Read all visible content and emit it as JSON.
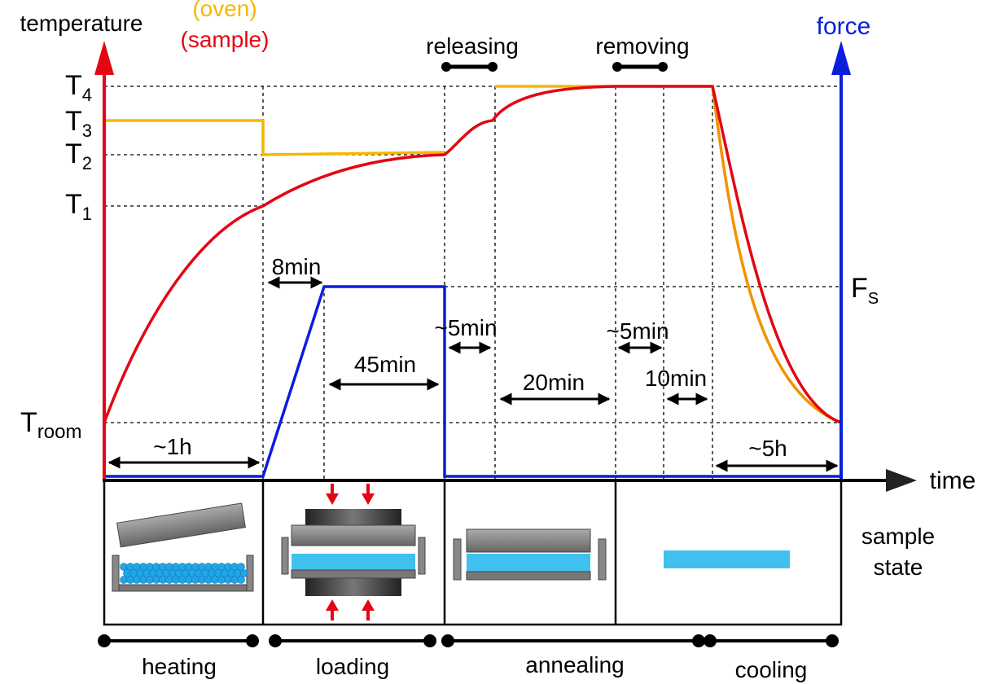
{
  "axes": {
    "y_left_label": "temperature",
    "legend_oven": "(oven)",
    "legend_sample": "(sample)",
    "y_right_label": "force",
    "x_label": "time"
  },
  "temperature_levels": [
    {
      "base": "T",
      "sub": "4"
    },
    {
      "base": "T",
      "sub": "3"
    },
    {
      "base": "T",
      "sub": "2"
    },
    {
      "base": "T",
      "sub": "1"
    },
    {
      "base": "T",
      "sub": "room"
    }
  ],
  "force_level": {
    "base": "F",
    "sub": "S"
  },
  "events": [
    "releasing",
    "removing"
  ],
  "durations": [
    "~1h",
    "8min",
    "45min",
    "~5min",
    "20min",
    "~5min",
    "10min",
    "~5h"
  ],
  "sample_state_label": [
    "sample",
    "state"
  ],
  "stages": [
    "heating",
    "loading",
    "annealing",
    "cooling"
  ]
}
